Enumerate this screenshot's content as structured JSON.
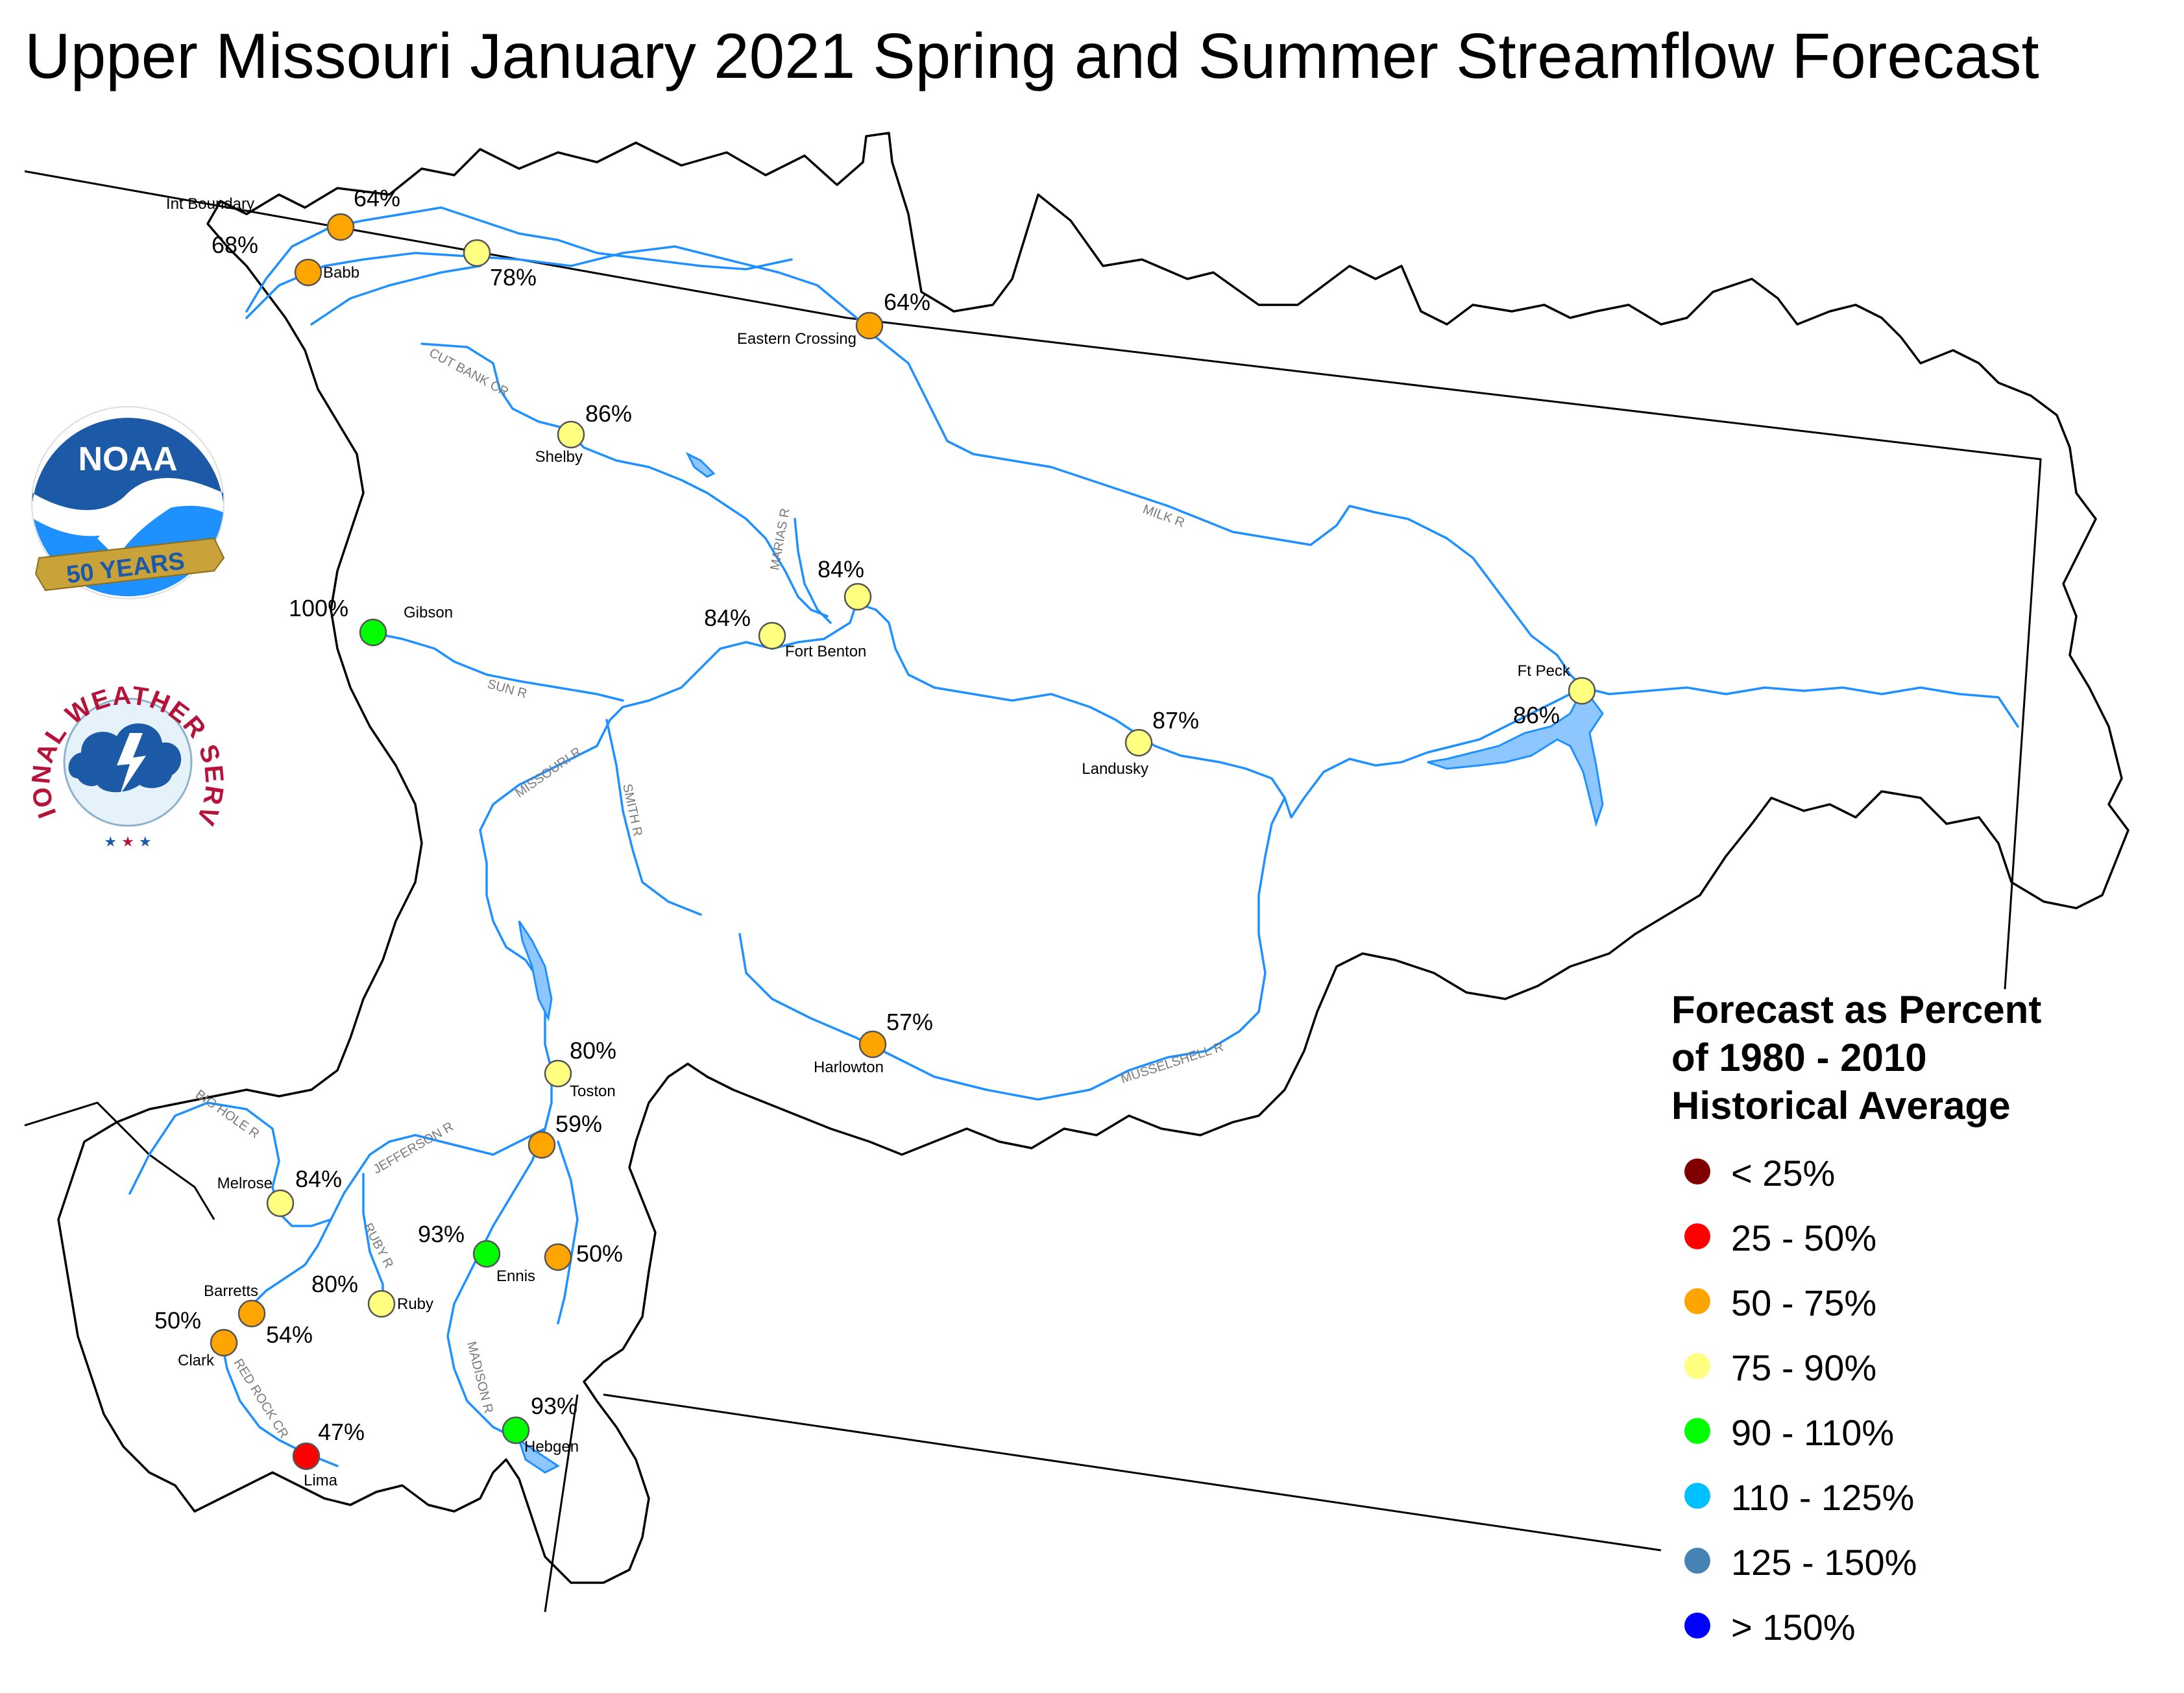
{
  "title": "Upper Missouri January 2021 Spring and Summer Streamflow Forecast",
  "logos": {
    "noaa": {
      "text": "NOAA",
      "years_text": "50 YEARS"
    },
    "nws": {
      "text": "NATIONAL WEATHER SERVICE"
    }
  },
  "legend": {
    "title": "Forecast as Percent\nof 1980 - 2010\nHistorical Average",
    "items": [
      {
        "label": "< 25%",
        "color": "#7f0000"
      },
      {
        "label": "25 - 50%",
        "color": "#ff0000"
      },
      {
        "label": "50 - 75%",
        "color": "#ffa500"
      },
      {
        "label": "75 - 90%",
        "color": "#ffff80"
      },
      {
        "label": "90 - 110%",
        "color": "#00ff00"
      },
      {
        "label": "110 - 125%",
        "color": "#00bfff"
      },
      {
        "label": "125 - 150%",
        "color": "#4682b4"
      },
      {
        "label": "> 150%",
        "color": "#0000ff"
      }
    ]
  },
  "rivers": [
    "CUT BANK CR",
    "MARIAS R",
    "MILK R",
    "SUN R",
    "MISSOURI R",
    "SMITH R",
    "MUSSELSHELL R",
    "BIG HOLE R",
    "JEFFERSON R",
    "RUBY R",
    "MADISON R",
    "RED ROCK CR"
  ],
  "stations": [
    {
      "name": "Int Boundary",
      "percent": "64%",
      "color": "#ffa500"
    },
    {
      "name": "Babb",
      "percent": "68%",
      "color": "#ffa500"
    },
    {
      "name": "",
      "percent": "78%",
      "color": "#ffff80"
    },
    {
      "name": "Eastern Crossing",
      "percent": "64%",
      "color": "#ffa500"
    },
    {
      "name": "Shelby",
      "percent": "86%",
      "color": "#ffff80"
    },
    {
      "name": "",
      "percent": "84%",
      "color": "#ffff80"
    },
    {
      "name": "Fort Benton",
      "percent": "84%",
      "color": "#ffff80"
    },
    {
      "name": "Gibson",
      "percent": "100%",
      "color": "#00ff00"
    },
    {
      "name": "Landusky",
      "percent": "87%",
      "color": "#ffff80"
    },
    {
      "name": "Ft Peck",
      "percent": "86%",
      "color": "#ffff80"
    },
    {
      "name": "Harlowton",
      "percent": "57%",
      "color": "#ffa500"
    },
    {
      "name": "Toston",
      "percent": "80%",
      "color": "#ffff80"
    },
    {
      "name": "",
      "percent": "59%",
      "color": "#ffa500"
    },
    {
      "name": "Melrose",
      "percent": "84%",
      "color": "#ffff80"
    },
    {
      "name": "Ennis",
      "percent": "93%",
      "color": "#00ff00"
    },
    {
      "name": "",
      "percent": "50%",
      "color": "#ffa500"
    },
    {
      "name": "Ruby",
      "percent": "80%",
      "color": "#ffff80"
    },
    {
      "name": "Barretts",
      "percent": "54%",
      "color": "#ffa500"
    },
    {
      "name": "Clark",
      "percent": "50%",
      "color": "#ffa500"
    },
    {
      "name": "Lima",
      "percent": "47%",
      "color": "#ff0000"
    },
    {
      "name": "Hebgen",
      "percent": "93%",
      "color": "#00ff00"
    }
  ]
}
